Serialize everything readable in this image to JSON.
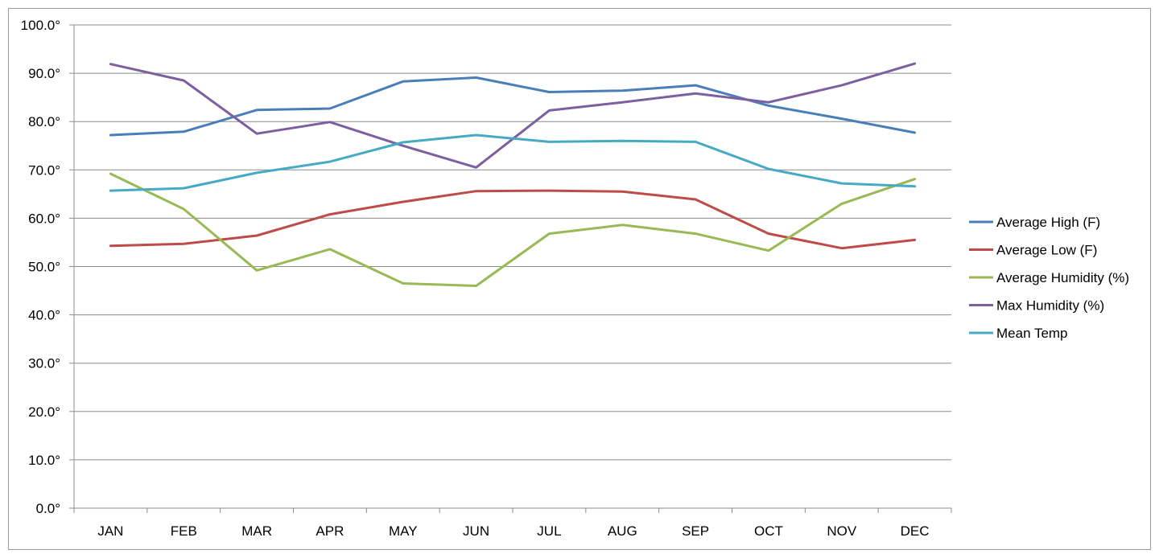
{
  "chart_data": {
    "type": "line",
    "title": "",
    "xlabel": "",
    "ylabel": "",
    "categories": [
      "JAN",
      "FEB",
      "MAR",
      "APR",
      "MAY",
      "JUN",
      "JUL",
      "AUG",
      "SEP",
      "OCT",
      "NOV",
      "DEC"
    ],
    "ylim": [
      0,
      100
    ],
    "y_ticks": [
      {
        "value": 0,
        "label": "0.0°"
      },
      {
        "value": 10,
        "label": "10.0°"
      },
      {
        "value": 20,
        "label": "20.0°"
      },
      {
        "value": 30,
        "label": "30.0°"
      },
      {
        "value": 40,
        "label": "40.0°"
      },
      {
        "value": 50,
        "label": "50.0°"
      },
      {
        "value": 60,
        "label": "60.0°"
      },
      {
        "value": 70,
        "label": "70.0°"
      },
      {
        "value": 80,
        "label": "80.0°"
      },
      {
        "value": 90,
        "label": "90.0°"
      },
      {
        "value": 100,
        "label": "100.0°"
      }
    ],
    "grid": true,
    "legend_position": "right",
    "series": [
      {
        "name": "Average High (F)",
        "color": "#4a7ebb",
        "values": [
          77.2,
          77.9,
          82.4,
          82.7,
          88.3,
          89.1,
          86.1,
          86.4,
          87.5,
          83.3,
          80.6,
          77.7
        ]
      },
      {
        "name": "Average Low (F)",
        "color": "#be4b48",
        "values": [
          54.3,
          54.7,
          56.4,
          60.8,
          63.4,
          65.6,
          65.7,
          65.5,
          63.9,
          56.8,
          53.8,
          55.5
        ]
      },
      {
        "name": "Average Humidity (%)",
        "color": "#98b954",
        "values": [
          69.2,
          61.9,
          49.2,
          53.6,
          46.5,
          46.0,
          56.8,
          58.6,
          56.8,
          53.3,
          63.0,
          68.1
        ]
      },
      {
        "name": "Max Humidity (%)",
        "color": "#7d5fa0",
        "values": [
          91.9,
          88.5,
          77.5,
          79.9,
          75.0,
          70.5,
          82.3,
          84.0,
          85.8,
          84.0,
          87.5,
          92.0
        ]
      },
      {
        "name": "Mean Temp",
        "color": "#46aac4",
        "values": [
          65.7,
          66.2,
          69.4,
          71.7,
          75.7,
          77.2,
          75.8,
          76.0,
          75.8,
          70.2,
          67.2,
          66.6
        ]
      }
    ]
  }
}
